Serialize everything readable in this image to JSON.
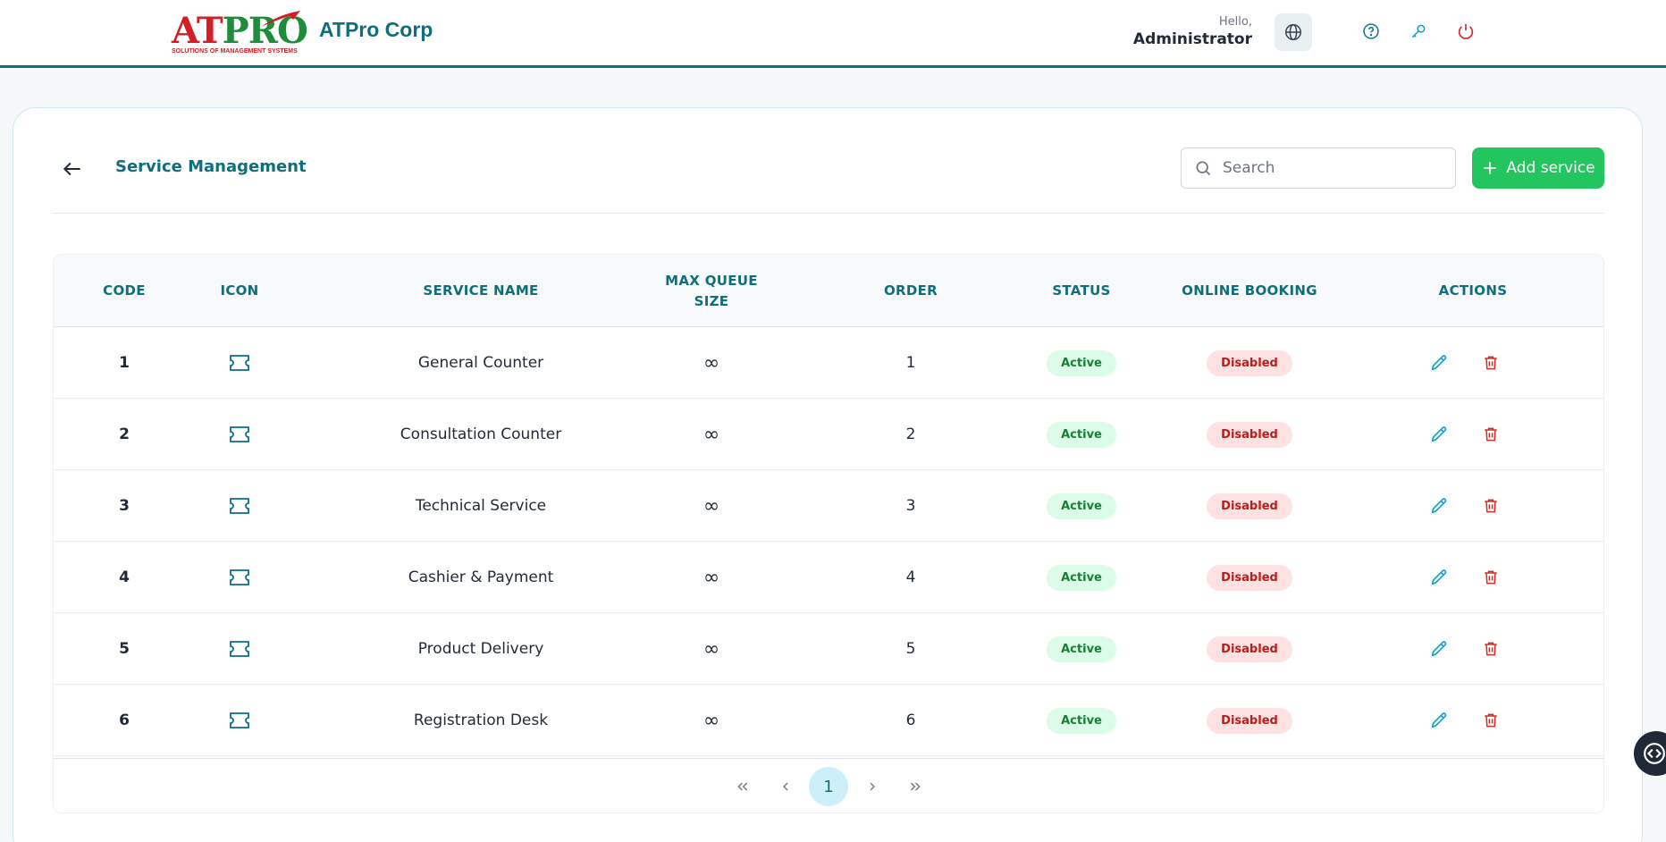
{
  "header": {
    "logo_word_a": "AT",
    "logo_word_b": "PRO",
    "logo_tagline": "SOLUTIONS OF MANAGEMENT SYSTEMS",
    "company_name": "ATPro Corp",
    "greeting": "Hello,",
    "user_name": "Administrator",
    "icons": [
      "globe-icon",
      "help-icon",
      "key-icon",
      "power-icon"
    ]
  },
  "page": {
    "title": "Service Management",
    "search_placeholder": "Search",
    "add_button_label": "Add service"
  },
  "table": {
    "headers": {
      "code": "CODE",
      "icon": "ICON",
      "service_name": "SERVICE NAME",
      "max_queue_size": "MAX QUEUE SIZE",
      "order": "ORDER",
      "status": "STATUS",
      "online_booking": "ONLINE BOOKING",
      "actions": "ACTIONS"
    },
    "rows": [
      {
        "code": "1",
        "name": "General Counter",
        "max_queue": "∞",
        "order": "1",
        "status": "Active",
        "online_booking": "Disabled"
      },
      {
        "code": "2",
        "name": "Consultation Counter",
        "max_queue": "∞",
        "order": "2",
        "status": "Active",
        "online_booking": "Disabled"
      },
      {
        "code": "3",
        "name": "Technical Service",
        "max_queue": "∞",
        "order": "3",
        "status": "Active",
        "online_booking": "Disabled"
      },
      {
        "code": "4",
        "name": "Cashier & Payment",
        "max_queue": "∞",
        "order": "4",
        "status": "Active",
        "online_booking": "Disabled"
      },
      {
        "code": "5",
        "name": "Product Delivery",
        "max_queue": "∞",
        "order": "5",
        "status": "Active",
        "online_booking": "Disabled"
      },
      {
        "code": "6",
        "name": "Registration Desk",
        "max_queue": "∞",
        "order": "6",
        "status": "Active",
        "online_booking": "Disabled"
      }
    ]
  },
  "pagination": {
    "first": "«",
    "prev": "‹",
    "current_page": "1",
    "next": "›",
    "last": "»"
  },
  "colors": {
    "brand_teal": "#0f6e7b",
    "add_green": "#22c55e",
    "active_bg": "#dcfce7",
    "active_text": "#15803d",
    "disabled_bg": "#fee2e2",
    "disabled_text": "#b91c1c",
    "edit_blue": "#0e9dd3",
    "delete_red": "#dc2626"
  }
}
